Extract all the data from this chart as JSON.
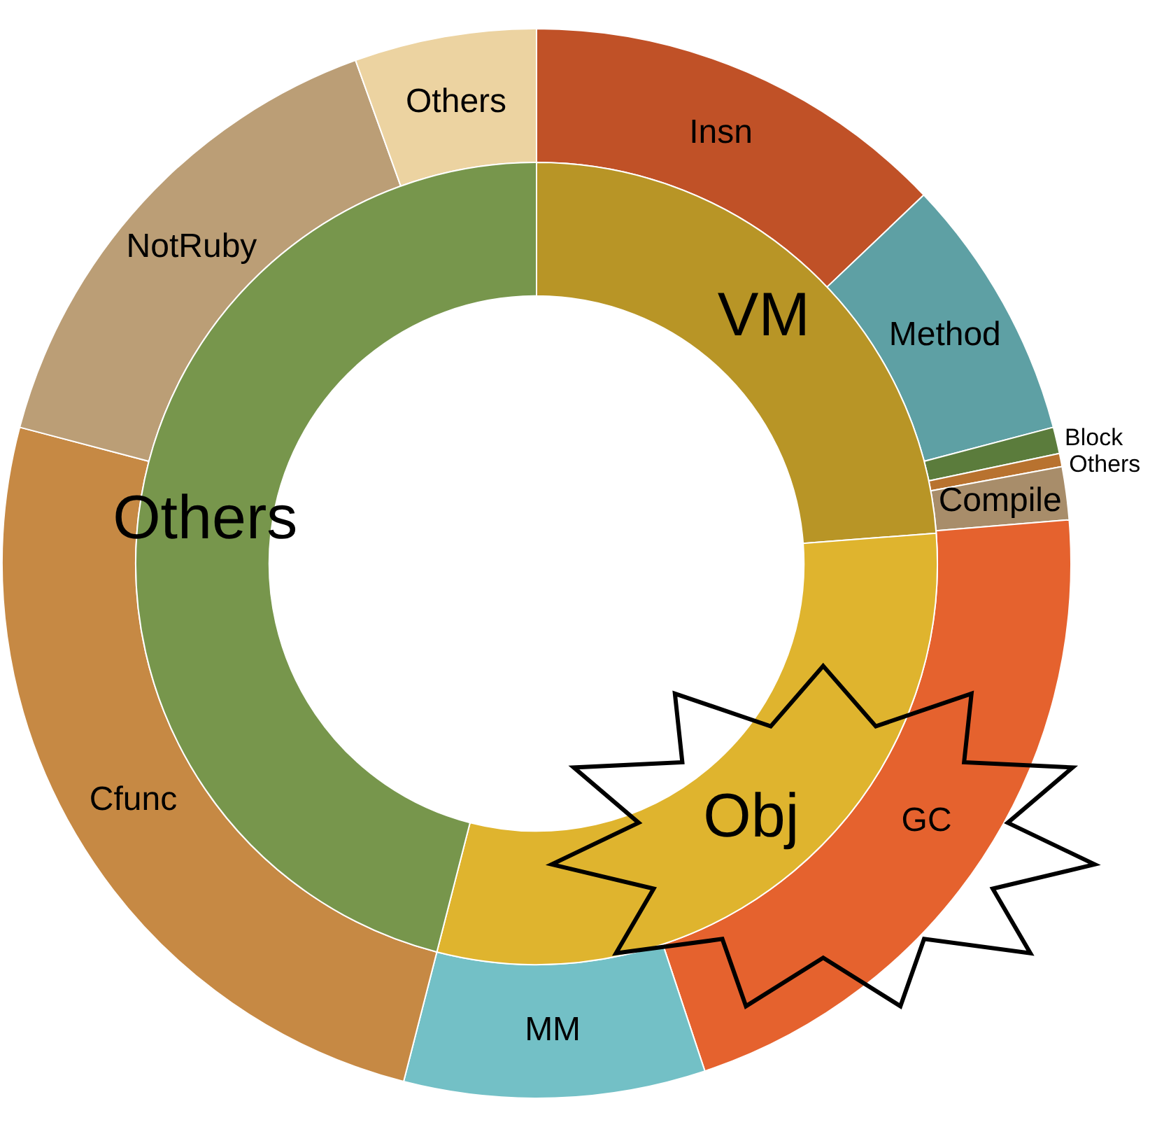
{
  "chart_data": [
    {
      "type": "donut",
      "legend": false,
      "categories": [
        "VM",
        "Obj",
        "Others"
      ],
      "colors": [
        "#b89526",
        "#dfb42e",
        "#77964c"
      ],
      "values": [
        23.8,
        30.2,
        46.0
      ]
    },
    {
      "type": "donut",
      "legend": false,
      "categories": [
        "Insn",
        "Method",
        "Block",
        "Others",
        "Compile",
        "GC",
        "MM",
        "Cfunc",
        "NotRuby",
        "Others"
      ],
      "colors": [
        "#c05127",
        "#5ea0a4",
        "#5b7c3c",
        "#b8722f",
        "#a88d6a",
        "#e5622e",
        "#73c0c6",
        "#c68944",
        "#bb9e76",
        "#ecd3a1"
      ],
      "values": [
        12.9,
        8.0,
        0.8,
        0.4,
        1.6,
        21.2,
        9.1,
        25.1,
        15.4,
        5.5
      ]
    }
  ]
}
